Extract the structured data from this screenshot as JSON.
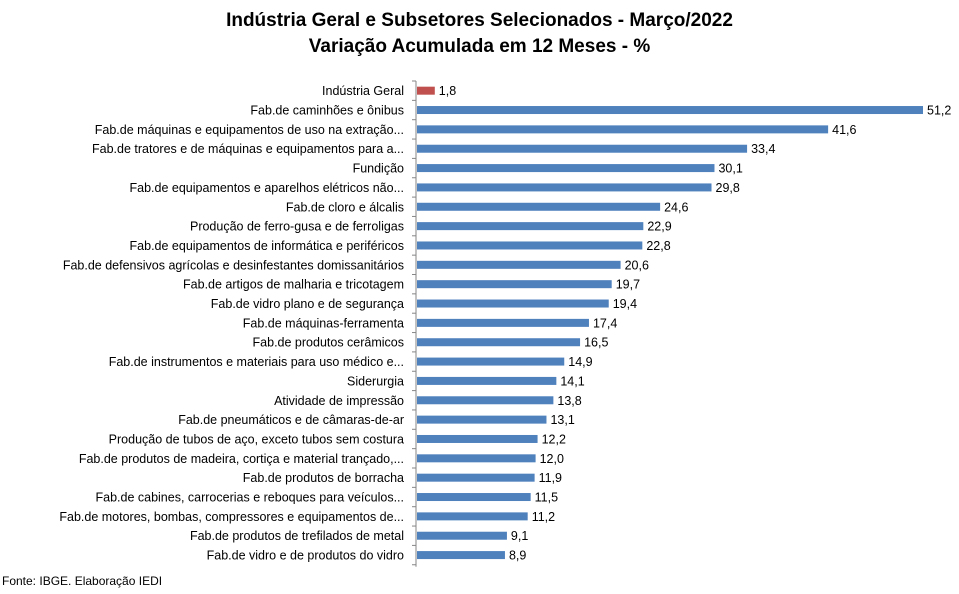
{
  "chart_data": {
    "type": "bar",
    "orientation": "horizontal",
    "title": "Indústria Geral e Subsetores Selecionados - Março/2022",
    "subtitle": "Variação Acumulada em 12 Meses - %",
    "categories": [
      "Indústria Geral",
      "Fab.de caminhões e ônibus",
      "Fab.de máquinas e equipamentos de uso na extração...",
      "Fab.de tratores e de máquinas e equipamentos para a...",
      "Fundição",
      "Fab.de equipamentos e aparelhos elétricos não...",
      "Fab.de cloro e álcalis",
      "Produção de ferro-gusa e de ferroligas",
      "Fab.de equipamentos de informática e periféricos",
      "Fab.de defensivos agrícolas e desinfestantes domissanitários",
      "Fab.de artigos de malharia e tricotagem",
      "Fab.de vidro plano e de segurança",
      "Fab.de máquinas-ferramenta",
      "Fab.de produtos cerâmicos",
      "Fab.de instrumentos e materiais para uso médico e...",
      "Siderurgia",
      "Atividade de impressão",
      "Fab.de pneumáticos e de câmaras-de-ar",
      "Produção de tubos de aço, exceto tubos sem costura",
      "Fab.de produtos de madeira, cortiça e material trançado,...",
      "Fab.de produtos de borracha",
      "Fab.de cabines, carrocerias e reboques para veículos...",
      "Fab.de motores, bombas, compressores e equipamentos de...",
      "Fab.de produtos de trefilados de metal",
      "Fab.de vidro e de produtos do vidro"
    ],
    "values": [
      1.8,
      51.2,
      41.6,
      33.4,
      30.1,
      29.8,
      24.6,
      22.9,
      22.8,
      20.6,
      19.7,
      19.4,
      17.4,
      16.5,
      14.9,
      14.1,
      13.8,
      13.1,
      12.2,
      12.0,
      11.9,
      11.5,
      11.2,
      9.1,
      8.9
    ],
    "value_labels": [
      "1,8",
      "51,2",
      "41,6",
      "33,4",
      "30,1",
      "29,8",
      "24,6",
      "22,9",
      "22,8",
      "20,6",
      "19,7",
      "19,4",
      "17,4",
      "16,5",
      "14,9",
      "14,1",
      "13,8",
      "13,1",
      "12,2",
      "12,0",
      "11,9",
      "11,5",
      "11,2",
      "9,1",
      "8,9"
    ],
    "highlight_index": 0,
    "xlim": [
      0,
      51.2
    ],
    "grid": false,
    "legend": "none",
    "colors": {
      "bar": "#4F81BD",
      "highlight": "#C0504D",
      "axis": "#868686"
    }
  },
  "source_note": "Fonte: IBGE. Elaboração IEDI"
}
